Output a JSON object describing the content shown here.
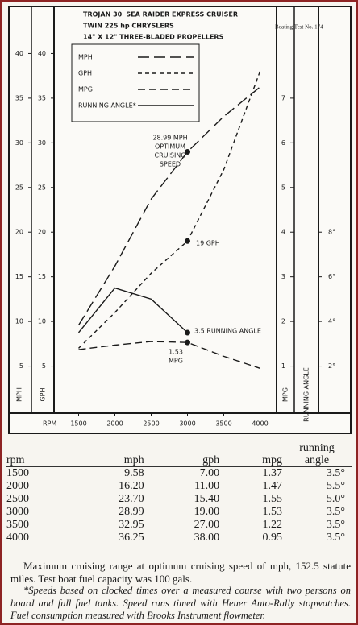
{
  "chart_data": {
    "type": "line",
    "title_lines": [
      "TROJAN 30' SEA RAIDER EXPRESS CRUISER",
      "TWIN 225 hp CHRYSLERS",
      "14\" X 12\" THREE-BLADED PROPELLERS"
    ],
    "test_label": "Boating Test No. 174",
    "x_label": "RPM",
    "x": [
      1500,
      2000,
      2500,
      3000,
      3500,
      4000
    ],
    "xlim": [
      1250,
      4150
    ],
    "xticks": [
      1500,
      2000,
      2500,
      3000,
      3500,
      4000
    ],
    "axes": [
      {
        "label": "MPH",
        "lim": [
          0,
          45
        ],
        "ticks": [
          5,
          10,
          15,
          20,
          25,
          30,
          35,
          40
        ]
      },
      {
        "label": "GPH",
        "lim": [
          0,
          45
        ],
        "ticks": [
          5,
          10,
          15,
          20,
          25,
          30,
          35,
          40
        ]
      },
      {
        "label": "MPG",
        "lim": [
          0,
          9
        ],
        "ticks": [
          1,
          2,
          3,
          4,
          5,
          6,
          7
        ]
      },
      {
        "label": "RUNNING ANGLE",
        "lim": [
          0,
          18
        ],
        "ticks": [
          {
            "value": 2,
            "label": "2°"
          },
          {
            "value": 4,
            "label": "4°"
          },
          {
            "value": 6,
            "label": "6°"
          },
          {
            "value": 8,
            "label": "8°"
          }
        ]
      }
    ],
    "series": [
      {
        "name": "MPH",
        "axis": 0,
        "color": "#1a1a1a",
        "dash": "14 6",
        "values": [
          9.58,
          16.2,
          23.7,
          28.99,
          32.95,
          36.25
        ]
      },
      {
        "name": "GPH",
        "axis": 1,
        "color": "#1a1a1a",
        "dash": "5 4",
        "values": [
          7,
          11,
          15.4,
          19,
          27,
          38
        ]
      },
      {
        "name": "MPG",
        "axis": 2,
        "color": "#1a1a1a",
        "dash": "9 5",
        "values": [
          1.37,
          1.47,
          1.55,
          1.53,
          1.22,
          0.95
        ]
      },
      {
        "name": "RUNNING ANGLE*",
        "axis": 3,
        "color": "#1a1a1a",
        "dash": "none",
        "values": [
          3.5,
          5.5,
          5.0,
          3.5,
          null,
          null
        ]
      }
    ],
    "annotations": [
      [
        "28.99 MPH",
        "OPTIMUM",
        "CRUISING",
        "SPEED"
      ],
      [
        "19 GPH"
      ],
      [
        "3.5  RUNNING ANGLE"
      ],
      [
        "1.53",
        "MPG"
      ]
    ]
  },
  "table": {
    "header": [
      "rpm",
      "mph",
      "gph",
      "mpg",
      "running angle"
    ],
    "rows": [
      [
        "1500",
        "9.58",
        "7.00",
        "1.37",
        "3.5°"
      ],
      [
        "2000",
        "16.20",
        "11.00",
        "1.47",
        "5.5°"
      ],
      [
        "2500",
        "23.70",
        "15.40",
        "1.55",
        "5.0°"
      ],
      [
        "3000",
        "28.99",
        "19.00",
        "1.53",
        "3.5°"
      ],
      [
        "3500",
        "32.95",
        "27.00",
        "1.22",
        "3.5°"
      ],
      [
        "4000",
        "36.25",
        "38.00",
        "0.95",
        "3.5°"
      ]
    ]
  },
  "notes": [
    "Maximum cruising range at optimum cruising speed of mph, 152.5 statute miles. Test boat fuel capacity was 100 gals.",
    "*Speeds based on clocked times over a measured course with two persons on board and full fuel tanks. Speed runs timed with Heuer Auto-Rally stopwatches. Fuel consumption measured with Brooks Instrument flowmeter."
  ]
}
